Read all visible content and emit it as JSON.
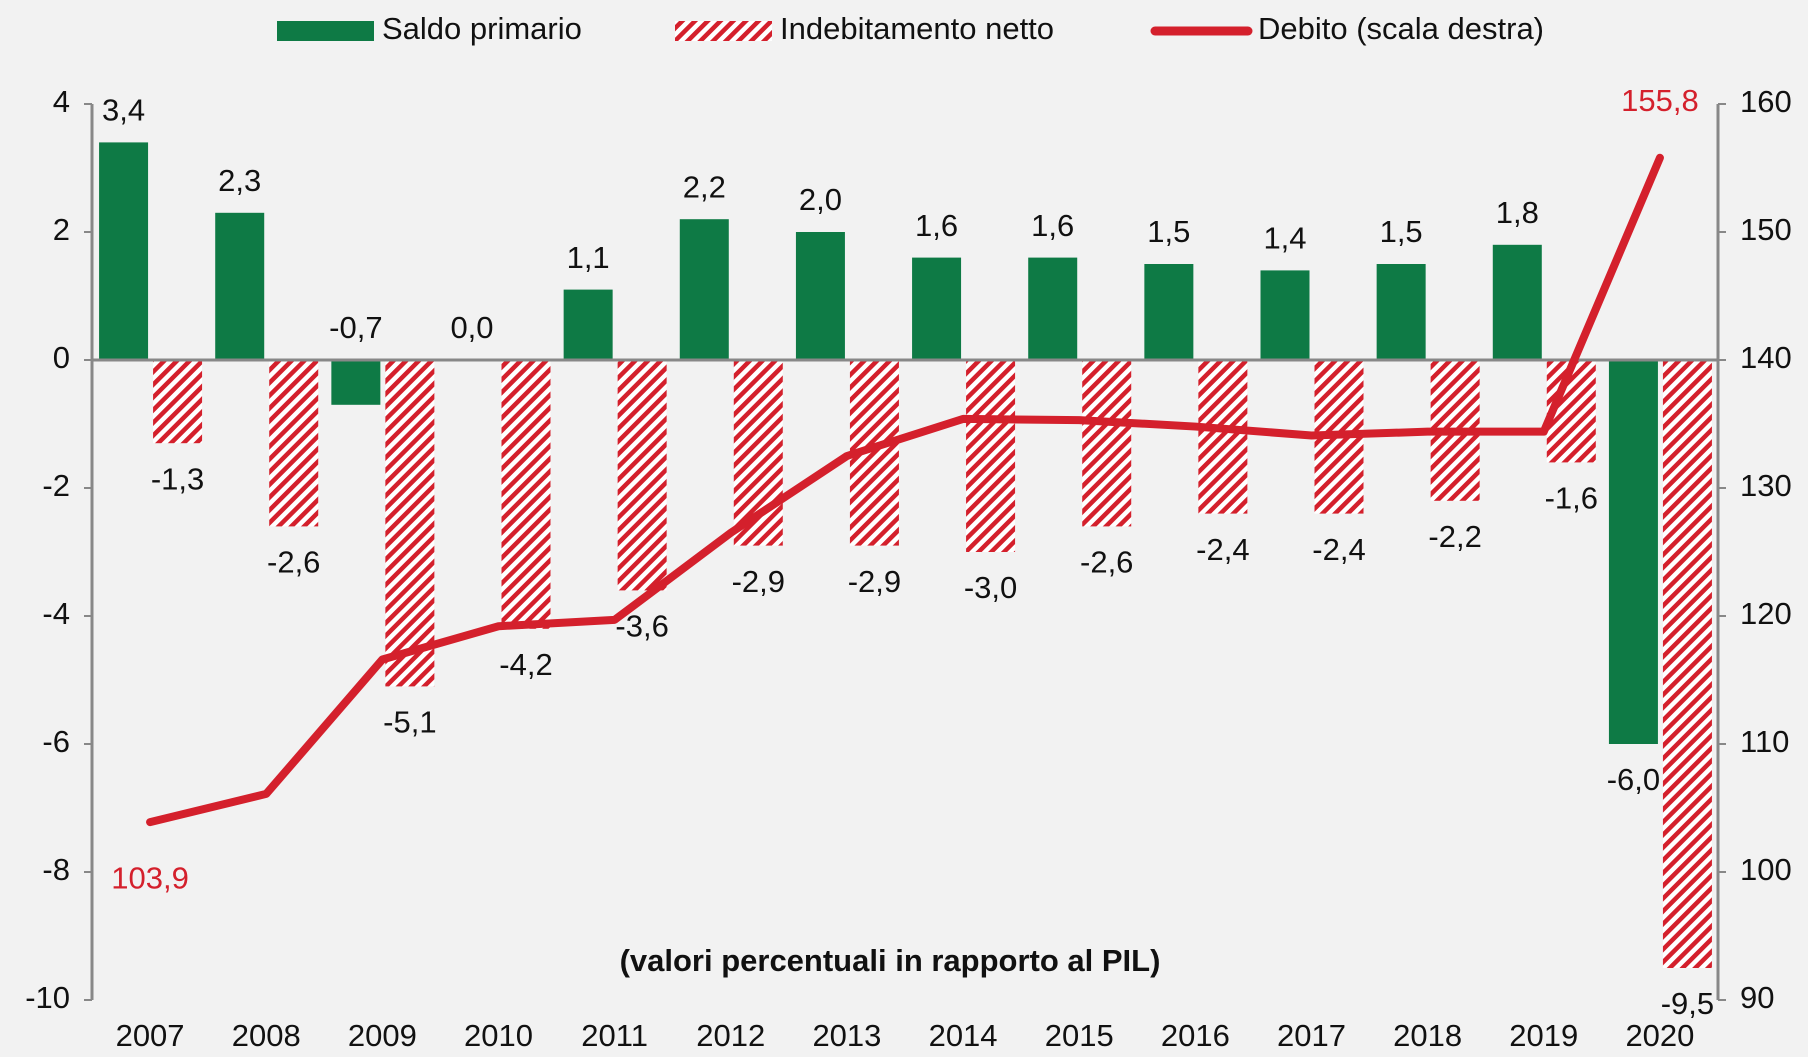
{
  "chart_data": {
    "type": "bar",
    "annotation": "(valori percentuali in rapporto al PIL)",
    "categories": [
      "2007",
      "2008",
      "2009",
      "2010",
      "2011",
      "2012",
      "2013",
      "2014",
      "2015",
      "2016",
      "2017",
      "2018",
      "2019",
      "2020"
    ],
    "series": [
      {
        "name": "Saldo primario",
        "type": "bar",
        "color": "#0e7a45",
        "values": [
          3.4,
          2.3,
          -0.7,
          0.0,
          1.1,
          2.2,
          2.0,
          1.6,
          1.6,
          1.5,
          1.4,
          1.5,
          1.8,
          -6.0
        ],
        "value_labels": [
          "3,4",
          "2,3",
          "-0,7",
          "0,0",
          "1,1",
          "2,2",
          "2,0",
          "1,6",
          "1,6",
          "1,5",
          "1,4",
          "1,5",
          "1,8",
          "-6,0"
        ]
      },
      {
        "name": "Indebitamento netto",
        "type": "bar",
        "color": "#d4202c",
        "hatched": true,
        "values": [
          -1.3,
          -2.6,
          -5.1,
          -4.2,
          -3.6,
          -2.9,
          -2.9,
          -3.0,
          -2.6,
          -2.4,
          -2.4,
          -2.2,
          -1.6,
          -9.5
        ],
        "value_labels": [
          "-1,3",
          "-2,6",
          "-5,1",
          "-4,2",
          "-3,6",
          "-2,9",
          "-2,9",
          "-3,0",
          "-2,6",
          "-2,4",
          "-2,4",
          "-2,2",
          "-1,6",
          "-9,5"
        ]
      },
      {
        "name": "Debito (scala destra)",
        "type": "line",
        "axis": "y2",
        "color": "#d4202c",
        "values": [
          103.9,
          106.1,
          116.6,
          119.2,
          119.7,
          126.5,
          132.5,
          135.4,
          135.3,
          134.8,
          134.1,
          134.4,
          134.4,
          155.8
        ],
        "value_labels": [
          "103,9",
          null,
          null,
          null,
          null,
          null,
          null,
          null,
          null,
          null,
          null,
          null,
          null,
          "155,8"
        ]
      }
    ],
    "ylim": [
      -10,
      4
    ],
    "yticks": [
      -10,
      -8,
      -6,
      -4,
      -2,
      0,
      2,
      4
    ],
    "y2lim": [
      90,
      160
    ],
    "y2ticks": [
      90,
      100,
      110,
      120,
      130,
      140,
      150,
      160
    ],
    "legend": "top"
  }
}
